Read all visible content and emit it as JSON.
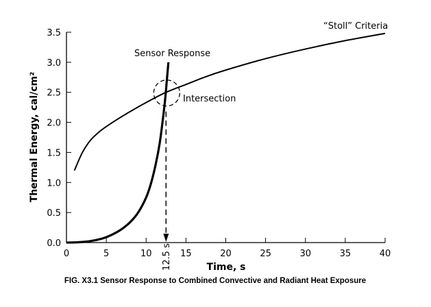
{
  "chart_data": {
    "type": "line",
    "title": "FIG. X3.1 Sensor Response to Combined Convective and Radiant Heat Exposure",
    "xlabel": "Time, s",
    "ylabel": "Thermal Energy, cal/cm²",
    "xlim": [
      0,
      40
    ],
    "ylim": [
      0,
      3.5
    ],
    "xticks": [
      0,
      5,
      10,
      15,
      20,
      25,
      30,
      35,
      40
    ],
    "yticks": [
      "0.0",
      "0.5",
      "1.0",
      "1.5",
      "2.0",
      "2.5",
      "3.0",
      "3.5"
    ],
    "grid": false,
    "series": [
      {
        "name": "“Stoll” Criteria",
        "x": [
          1,
          2,
          3,
          4,
          5,
          6.5,
          8,
          10,
          12.5,
          15,
          17.5,
          20,
          25,
          30,
          35,
          40
        ],
        "y": [
          1.2,
          1.5,
          1.7,
          1.83,
          1.93,
          2.06,
          2.18,
          2.33,
          2.5,
          2.63,
          2.76,
          2.87,
          3.06,
          3.22,
          3.36,
          3.48
        ]
      },
      {
        "name": "Sensor Response",
        "x": [
          0,
          1,
          2,
          3,
          4,
          5,
          6,
          7,
          8,
          9,
          10,
          10.6,
          11.2,
          11.7,
          12.1,
          12.4,
          12.6,
          12.8
        ],
        "y": [
          0,
          0.003,
          0.01,
          0.025,
          0.05,
          0.09,
          0.15,
          0.23,
          0.34,
          0.5,
          0.75,
          0.98,
          1.3,
          1.65,
          2.05,
          2.4,
          2.7,
          3.0
        ]
      }
    ],
    "annotations": {
      "intersection": "Intersection",
      "time_marker": "12.5 s",
      "intersection_point": [
        12.5,
        2.5
      ]
    }
  }
}
